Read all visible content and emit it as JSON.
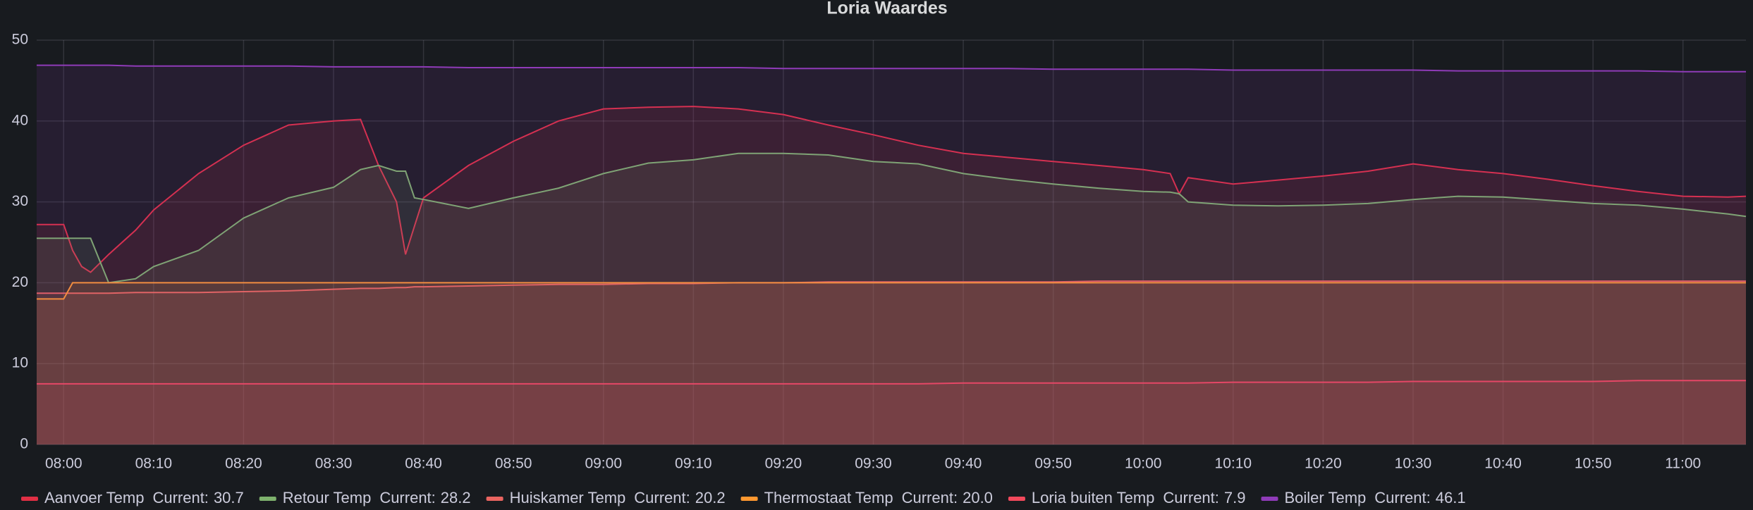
{
  "chart_data": {
    "type": "line",
    "title": "Loria Waardes",
    "x": [
      "07:57",
      "08:00",
      "08:01",
      "08:02",
      "08:03",
      "08:05",
      "08:08",
      "08:10",
      "08:15",
      "08:20",
      "08:25",
      "08:30",
      "08:33",
      "08:35",
      "08:37",
      "08:38",
      "08:39",
      "08:40",
      "08:45",
      "08:50",
      "08:55",
      "09:00",
      "09:05",
      "09:10",
      "09:15",
      "09:20",
      "09:25",
      "09:30",
      "09:35",
      "09:40",
      "09:45",
      "09:50",
      "09:55",
      "10:00",
      "10:03",
      "10:04",
      "10:05",
      "10:10",
      "10:15",
      "10:20",
      "10:25",
      "10:30",
      "10:35",
      "10:40",
      "10:45",
      "10:50",
      "10:55",
      "11:00",
      "11:05",
      "11:07"
    ],
    "xlim": [
      "07:57",
      "11:07"
    ],
    "xticks": [
      "08:00",
      "08:10",
      "08:20",
      "08:30",
      "08:40",
      "08:50",
      "09:00",
      "09:10",
      "09:20",
      "09:30",
      "09:40",
      "09:50",
      "10:00",
      "10:10",
      "10:20",
      "10:30",
      "10:40",
      "10:50",
      "11:00"
    ],
    "ylim": [
      0,
      50
    ],
    "yticks": [
      0,
      10,
      20,
      30,
      40,
      50
    ],
    "grid": true,
    "fill": true,
    "legend_stat": "Current:",
    "series": [
      {
        "name": "Aanvoer Temp",
        "color": "#e02f44",
        "current": "30.7",
        "values": [
          27.2,
          27.2,
          24,
          22,
          21.3,
          23.5,
          26.5,
          29,
          33.5,
          37,
          39.5,
          40,
          40.2,
          34.5,
          30,
          23.5,
          27,
          30.5,
          34.5,
          37.5,
          40,
          41.5,
          41.7,
          41.8,
          41.5,
          40.8,
          39.5,
          38.3,
          37,
          36,
          35.5,
          35,
          34.5,
          34,
          33.5,
          31,
          33,
          32.2,
          32.7,
          33.2,
          33.8,
          34.7,
          34,
          33.5,
          32.8,
          32,
          31.3,
          30.7,
          30.6,
          30.7
        ]
      },
      {
        "name": "Retour Temp",
        "color": "#7eb26d",
        "current": "28.2",
        "values": [
          25.5,
          25.5,
          25.5,
          25.5,
          25.5,
          20,
          20.5,
          22,
          24,
          28,
          30.5,
          31.8,
          34,
          34.5,
          33.8,
          33.8,
          30.5,
          30.3,
          29.2,
          30.5,
          31.7,
          33.5,
          34.8,
          35.2,
          36,
          36,
          35.8,
          35,
          34.7,
          33.5,
          32.8,
          32.2,
          31.7,
          31.3,
          31.2,
          31,
          30,
          29.6,
          29.5,
          29.6,
          29.8,
          30.3,
          30.7,
          30.6,
          30.2,
          29.8,
          29.6,
          29.1,
          28.5,
          28.2
        ]
      },
      {
        "name": "Huiskamer Temp",
        "color": "#ea6460",
        "current": "20.2",
        "values": [
          18.7,
          18.7,
          18.7,
          18.7,
          18.7,
          18.7,
          18.8,
          18.8,
          18.8,
          18.9,
          19,
          19.2,
          19.3,
          19.3,
          19.4,
          19.4,
          19.5,
          19.5,
          19.6,
          19.7,
          19.8,
          19.8,
          19.9,
          19.9,
          20,
          20,
          20.1,
          20.1,
          20.1,
          20.1,
          20.1,
          20.1,
          20.2,
          20.2,
          20.2,
          20.2,
          20.2,
          20.2,
          20.2,
          20.2,
          20.2,
          20.2,
          20.2,
          20.2,
          20.2,
          20.2,
          20.2,
          20.2,
          20.2,
          20.2
        ]
      },
      {
        "name": "Thermostaat Temp",
        "color": "#ff9830",
        "current": "20.0",
        "values": [
          18,
          18,
          20,
          20,
          20,
          20,
          20,
          20,
          20,
          20,
          20,
          20,
          20,
          20,
          20,
          20,
          20,
          20,
          20,
          20,
          20,
          20,
          20,
          20,
          20,
          20,
          20,
          20,
          20,
          20,
          20,
          20,
          20,
          20,
          20,
          20,
          20,
          20,
          20,
          20,
          20,
          20,
          20,
          20,
          20,
          20,
          20,
          20,
          20,
          20
        ]
      },
      {
        "name": "Loria buiten Temp",
        "color": "#f2495c",
        "current": "7.9",
        "values": [
          7.5,
          7.5,
          7.5,
          7.5,
          7.5,
          7.5,
          7.5,
          7.5,
          7.5,
          7.5,
          7.5,
          7.5,
          7.5,
          7.5,
          7.5,
          7.5,
          7.5,
          7.5,
          7.5,
          7.5,
          7.5,
          7.5,
          7.5,
          7.5,
          7.5,
          7.5,
          7.5,
          7.5,
          7.5,
          7.6,
          7.6,
          7.6,
          7.6,
          7.6,
          7.6,
          7.6,
          7.6,
          7.7,
          7.7,
          7.7,
          7.7,
          7.8,
          7.8,
          7.8,
          7.8,
          7.8,
          7.9,
          7.9,
          7.9,
          7.9
        ]
      },
      {
        "name": "Boiler Temp",
        "color": "#8f3bb8",
        "current": "46.1",
        "values": [
          46.9,
          46.9,
          46.9,
          46.9,
          46.9,
          46.9,
          46.8,
          46.8,
          46.8,
          46.8,
          46.8,
          46.7,
          46.7,
          46.7,
          46.7,
          46.7,
          46.7,
          46.7,
          46.6,
          46.6,
          46.6,
          46.6,
          46.6,
          46.6,
          46.6,
          46.5,
          46.5,
          46.5,
          46.5,
          46.5,
          46.5,
          46.4,
          46.4,
          46.4,
          46.4,
          46.4,
          46.4,
          46.3,
          46.3,
          46.3,
          46.3,
          46.3,
          46.2,
          46.2,
          46.2,
          46.2,
          46.2,
          46.1,
          46.1,
          46.1
        ]
      }
    ]
  }
}
